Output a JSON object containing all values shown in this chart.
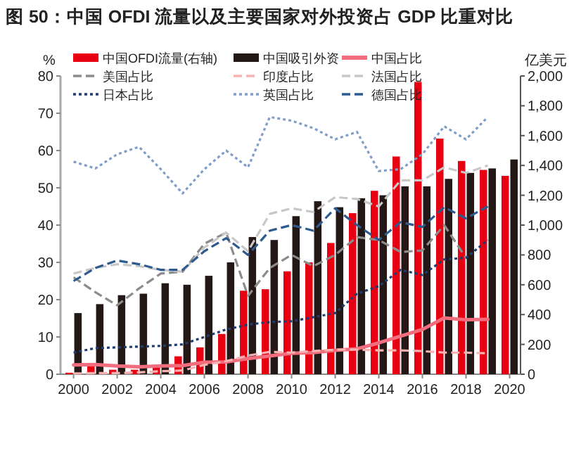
{
  "chart_data": {
    "type": "bar",
    "title": "图 50：中国 OFDI 流量以及主要国家对外投资占 GDP 比重对比",
    "ylabel": "%",
    "y2label": "亿美元",
    "x": [
      2000,
      2001,
      2002,
      2003,
      2004,
      2005,
      2006,
      2007,
      2008,
      2009,
      2010,
      2011,
      2012,
      2013,
      2014,
      2015,
      2016,
      2017,
      2018,
      2019,
      2020
    ],
    "xlim": [
      1999.4,
      2020.5
    ],
    "xticks": [
      2000,
      2002,
      2004,
      2006,
      2008,
      2010,
      2012,
      2014,
      2016,
      2018,
      2020
    ],
    "ylim": [
      0,
      80
    ],
    "yticks": [
      0,
      10,
      20,
      30,
      40,
      50,
      60,
      70,
      80
    ],
    "y2lim": [
      0,
      2000
    ],
    "y2ticks": [
      0,
      200,
      400,
      600,
      800,
      {
        "value": 1000,
        "label": "1,000"
      },
      {
        "value": 1200,
        "label": "1,200"
      },
      {
        "value": 1400,
        "label": "1,400"
      },
      {
        "value": 1600,
        "label": "1,600"
      },
      {
        "value": 1800,
        "label": "1,800"
      },
      {
        "value": 2000,
        "label": "2,000"
      }
    ],
    "legend": "top",
    "grid": false,
    "series": [
      {
        "name": "中国OFDI流量(右轴)",
        "axis": "y2",
        "color": "#e60012",
        "values": [
          10,
          70,
          30,
          30,
          60,
          120,
          180,
          270,
          560,
          570,
          690,
          750,
          880,
          1080,
          1230,
          1460,
          1960,
          1580,
          1430,
          1370,
          1330
        ]
      },
      {
        "name": "中国吸引外资",
        "axis": "y2",
        "color": "#231815",
        "values": [
          410,
          470,
          530,
          540,
          610,
          600,
          660,
          750,
          920,
          900,
          1060,
          1160,
          1120,
          1180,
          1200,
          1260,
          1260,
          1310,
          1350,
          1380,
          1440
        ]
      },
      {
        "name": "中国占比",
        "type": "line",
        "line_style": "solid",
        "color": "#f26d7d",
        "values": [
          2.5,
          2.6,
          2.2,
          2.0,
          2.2,
          2.3,
          3.2,
          3.3,
          4.2,
          4.9,
          5.6,
          5.8,
          6.4,
          6.8,
          8.4,
          10.2,
          12,
          15.1,
          14.6,
          14.7,
          null
        ]
      },
      {
        "name": "美国占比",
        "type": "line",
        "line_style": "dashed",
        "color": "#8c8c8c",
        "values": [
          26,
          22,
          18.5,
          23,
          27,
          27.5,
          35,
          38,
          21,
          28.5,
          32,
          29,
          32,
          36.8,
          36,
          32.8,
          33.2,
          40,
          31.2,
          null,
          null
        ]
      },
      {
        "name": "印度占比",
        "type": "line",
        "line_style": "dashed",
        "color": "#f7b2b2",
        "values": [
          0.2,
          0.3,
          0.3,
          0.5,
          0.8,
          1,
          2.5,
          3.5,
          5,
          6,
          5.8,
          6.2,
          6.6,
          6.6,
          6.4,
          6.4,
          6.2,
          5.8,
          5.8,
          5.6,
          null
        ]
      },
      {
        "name": "法国占比",
        "type": "line",
        "line_style": "dashed",
        "color": "#c8c8c8",
        "values": [
          27,
          28.5,
          29.5,
          29,
          28,
          27.5,
          34,
          38,
          33,
          43,
          44.5,
          43.5,
          47.5,
          47,
          45,
          52,
          52,
          55.5,
          54,
          56,
          null
        ]
      },
      {
        "name": "日本占比",
        "type": "line",
        "line_style": "dotted",
        "color": "#1f3d6e",
        "values": [
          5.8,
          7,
          7.2,
          7.4,
          7.6,
          8,
          10,
          12,
          13.3,
          14,
          14.2,
          15.3,
          16.4,
          21.6,
          23.6,
          28,
          26.6,
          30.8,
          31.2,
          36,
          null
        ]
      },
      {
        "name": "英国占比",
        "type": "line",
        "line_style": "dotted",
        "color": "#7f9fc8",
        "values": [
          57,
          55.2,
          59,
          61,
          55,
          48.5,
          55,
          60,
          55.5,
          69,
          68,
          66,
          63,
          65,
          54.5,
          55,
          59,
          66.5,
          63,
          69,
          null
        ]
      },
      {
        "name": "德国占比",
        "type": "line",
        "line_style": "dashed",
        "color": "#2e5b8f",
        "values": [
          25,
          28.5,
          30.5,
          29.5,
          28,
          28,
          33,
          36.5,
          32,
          38.5,
          40,
          38.5,
          44.5,
          40,
          36,
          40.8,
          39.5,
          44.8,
          41.8,
          45,
          null
        ]
      }
    ]
  }
}
